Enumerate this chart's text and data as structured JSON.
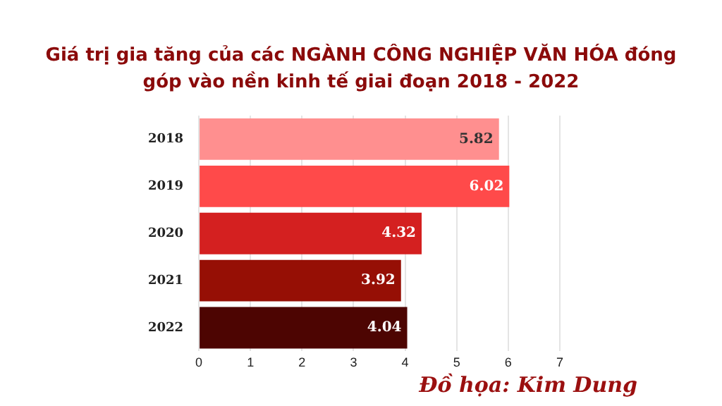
{
  "chart_data": {
    "type": "bar",
    "orientation": "horizontal",
    "title": "Giá trị gia tăng của các NGÀNH CÔNG NGHIỆP VĂN HÓA đóng góp vào nền kinh tế giai đoạn 2018 - 2022",
    "categories": [
      "2018",
      "2019",
      "2020",
      "2021",
      "2022"
    ],
    "values": [
      5.82,
      6.02,
      4.32,
      3.92,
      4.04
    ],
    "colors": [
      "#ff8f8f",
      "#ff4a4a",
      "#d42020",
      "#960f05",
      "#4d0502"
    ],
    "xlim": [
      0,
      7
    ],
    "xticks": [
      0,
      1,
      2,
      3,
      4,
      5,
      6,
      7
    ],
    "grid": "x",
    "data_labels": true,
    "annotations": [
      "Đồ họa: Kim Dung"
    ]
  }
}
